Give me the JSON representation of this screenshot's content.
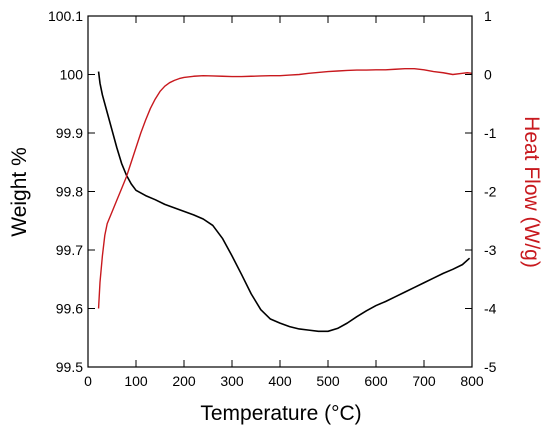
{
  "chart_data": {
    "type": "line",
    "title": "",
    "xlabel": "Temperature (°C)",
    "ylabel": "Weight %",
    "y2label": "Heat Flow (W/g)",
    "xlim": [
      0,
      800
    ],
    "ylim": [
      99.5,
      100.1
    ],
    "y2lim": [
      -5,
      1
    ],
    "x_ticks": [
      "0",
      "100",
      "200",
      "300",
      "400",
      "500",
      "600",
      "700",
      "800"
    ],
    "y_ticks": [
      "99.5",
      "99.6",
      "99.7",
      "99.8",
      "99.9",
      "100",
      "100.1"
    ],
    "y2_ticks": [
      "-5",
      "-4",
      "-3",
      "-2",
      "-1",
      "0",
      "1"
    ],
    "grid": false,
    "colors": {
      "weight": "#000000",
      "heat_flow": "#c8191e",
      "y2_axis_title": "#c8191e"
    },
    "series": [
      {
        "axis": "left",
        "x": [
          22,
          25,
          30,
          40,
          50,
          60,
          70,
          80,
          90,
          100,
          120,
          140,
          160,
          180,
          200,
          220,
          240,
          260,
          280,
          300,
          320,
          340,
          360,
          380,
          400,
          420,
          440,
          460,
          480,
          500,
          520,
          540,
          560,
          580,
          600,
          620,
          640,
          660,
          680,
          700,
          720,
          740,
          760,
          780,
          795
        ],
        "y": [
          100.005,
          99.985,
          99.965,
          99.935,
          99.905,
          99.875,
          99.848,
          99.828,
          99.813,
          99.802,
          99.793,
          99.786,
          99.778,
          99.772,
          99.766,
          99.76,
          99.753,
          99.742,
          99.72,
          99.69,
          99.658,
          99.625,
          99.598,
          99.582,
          99.575,
          99.569,
          99.565,
          99.563,
          99.561,
          99.561,
          99.566,
          99.575,
          99.586,
          99.596,
          99.605,
          99.612,
          99.62,
          99.628,
          99.636,
          99.644,
          99.652,
          99.66,
          99.667,
          99.675,
          99.686
        ]
      },
      {
        "axis": "right",
        "x": [
          22,
          25,
          30,
          35,
          40,
          50,
          60,
          70,
          80,
          90,
          100,
          110,
          120,
          130,
          140,
          150,
          160,
          170,
          180,
          190,
          200,
          220,
          240,
          260,
          280,
          300,
          320,
          340,
          360,
          380,
          400,
          420,
          440,
          460,
          480,
          500,
          520,
          540,
          560,
          580,
          600,
          620,
          640,
          660,
          680,
          700,
          720,
          740,
          760,
          780,
          790,
          800
        ],
        "y": [
          -4.0,
          -3.55,
          -3.1,
          -2.75,
          -2.55,
          -2.35,
          -2.15,
          -1.95,
          -1.75,
          -1.5,
          -1.25,
          -1.0,
          -0.78,
          -0.58,
          -0.42,
          -0.29,
          -0.2,
          -0.14,
          -0.1,
          -0.07,
          -0.05,
          -0.03,
          -0.02,
          -0.025,
          -0.03,
          -0.035,
          -0.035,
          -0.03,
          -0.025,
          -0.02,
          -0.02,
          -0.01,
          0.0,
          0.02,
          0.035,
          0.05,
          0.06,
          0.07,
          0.075,
          0.075,
          0.08,
          0.08,
          0.09,
          0.1,
          0.1,
          0.08,
          0.05,
          0.03,
          0.0,
          0.02,
          0.03,
          0.02
        ]
      }
    ]
  }
}
